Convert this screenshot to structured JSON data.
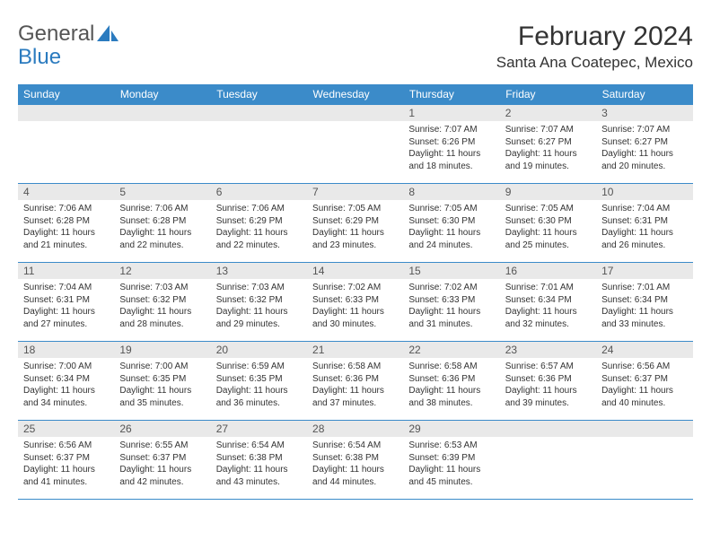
{
  "logo": {
    "text1": "General",
    "text2": "Blue"
  },
  "title": "February 2024",
  "location": "Santa Ana Coatepec, Mexico",
  "colors": {
    "header_bg": "#3b8bc9",
    "header_text": "#ffffff",
    "daynum_bg": "#e9e9e9",
    "border": "#3b8bc9",
    "logo_blue": "#2b7bbf"
  },
  "weekdays": [
    "Sunday",
    "Monday",
    "Tuesday",
    "Wednesday",
    "Thursday",
    "Friday",
    "Saturday"
  ],
  "weeks": [
    [
      null,
      null,
      null,
      null,
      {
        "n": "1",
        "sr": "7:07 AM",
        "ss": "6:26 PM",
        "dl": "11 hours and 18 minutes."
      },
      {
        "n": "2",
        "sr": "7:07 AM",
        "ss": "6:27 PM",
        "dl": "11 hours and 19 minutes."
      },
      {
        "n": "3",
        "sr": "7:07 AM",
        "ss": "6:27 PM",
        "dl": "11 hours and 20 minutes."
      }
    ],
    [
      {
        "n": "4",
        "sr": "7:06 AM",
        "ss": "6:28 PM",
        "dl": "11 hours and 21 minutes."
      },
      {
        "n": "5",
        "sr": "7:06 AM",
        "ss": "6:28 PM",
        "dl": "11 hours and 22 minutes."
      },
      {
        "n": "6",
        "sr": "7:06 AM",
        "ss": "6:29 PM",
        "dl": "11 hours and 22 minutes."
      },
      {
        "n": "7",
        "sr": "7:05 AM",
        "ss": "6:29 PM",
        "dl": "11 hours and 23 minutes."
      },
      {
        "n": "8",
        "sr": "7:05 AM",
        "ss": "6:30 PM",
        "dl": "11 hours and 24 minutes."
      },
      {
        "n": "9",
        "sr": "7:05 AM",
        "ss": "6:30 PM",
        "dl": "11 hours and 25 minutes."
      },
      {
        "n": "10",
        "sr": "7:04 AM",
        "ss": "6:31 PM",
        "dl": "11 hours and 26 minutes."
      }
    ],
    [
      {
        "n": "11",
        "sr": "7:04 AM",
        "ss": "6:31 PM",
        "dl": "11 hours and 27 minutes."
      },
      {
        "n": "12",
        "sr": "7:03 AM",
        "ss": "6:32 PM",
        "dl": "11 hours and 28 minutes."
      },
      {
        "n": "13",
        "sr": "7:03 AM",
        "ss": "6:32 PM",
        "dl": "11 hours and 29 minutes."
      },
      {
        "n": "14",
        "sr": "7:02 AM",
        "ss": "6:33 PM",
        "dl": "11 hours and 30 minutes."
      },
      {
        "n": "15",
        "sr": "7:02 AM",
        "ss": "6:33 PM",
        "dl": "11 hours and 31 minutes."
      },
      {
        "n": "16",
        "sr": "7:01 AM",
        "ss": "6:34 PM",
        "dl": "11 hours and 32 minutes."
      },
      {
        "n": "17",
        "sr": "7:01 AM",
        "ss": "6:34 PM",
        "dl": "11 hours and 33 minutes."
      }
    ],
    [
      {
        "n": "18",
        "sr": "7:00 AM",
        "ss": "6:34 PM",
        "dl": "11 hours and 34 minutes."
      },
      {
        "n": "19",
        "sr": "7:00 AM",
        "ss": "6:35 PM",
        "dl": "11 hours and 35 minutes."
      },
      {
        "n": "20",
        "sr": "6:59 AM",
        "ss": "6:35 PM",
        "dl": "11 hours and 36 minutes."
      },
      {
        "n": "21",
        "sr": "6:58 AM",
        "ss": "6:36 PM",
        "dl": "11 hours and 37 minutes."
      },
      {
        "n": "22",
        "sr": "6:58 AM",
        "ss": "6:36 PM",
        "dl": "11 hours and 38 minutes."
      },
      {
        "n": "23",
        "sr": "6:57 AM",
        "ss": "6:36 PM",
        "dl": "11 hours and 39 minutes."
      },
      {
        "n": "24",
        "sr": "6:56 AM",
        "ss": "6:37 PM",
        "dl": "11 hours and 40 minutes."
      }
    ],
    [
      {
        "n": "25",
        "sr": "6:56 AM",
        "ss": "6:37 PM",
        "dl": "11 hours and 41 minutes."
      },
      {
        "n": "26",
        "sr": "6:55 AM",
        "ss": "6:37 PM",
        "dl": "11 hours and 42 minutes."
      },
      {
        "n": "27",
        "sr": "6:54 AM",
        "ss": "6:38 PM",
        "dl": "11 hours and 43 minutes."
      },
      {
        "n": "28",
        "sr": "6:54 AM",
        "ss": "6:38 PM",
        "dl": "11 hours and 44 minutes."
      },
      {
        "n": "29",
        "sr": "6:53 AM",
        "ss": "6:39 PM",
        "dl": "11 hours and 45 minutes."
      },
      null,
      null
    ]
  ],
  "labels": {
    "sunrise": "Sunrise:",
    "sunset": "Sunset:",
    "daylight": "Daylight:"
  }
}
